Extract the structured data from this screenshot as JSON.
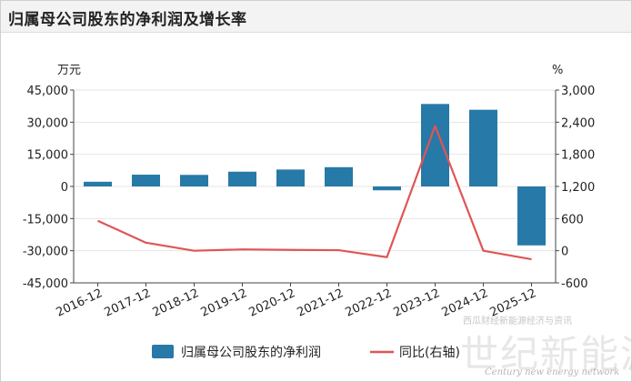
{
  "title": "归属母公司股东的净利润及增长率",
  "watermark": {
    "small": "西瓜财经新能源经济与资讯",
    "cn": "世纪新能源网",
    "en": "Century new energy network"
  },
  "chart_data": {
    "type": "bar",
    "categories": [
      "2016-12",
      "2017-12",
      "2018-12",
      "2019-12",
      "2020-12",
      "2021-12",
      "2022-12",
      "2023-12",
      "2024-12",
      "2025-12"
    ],
    "series": [
      {
        "name": "归属母公司股东的净利润",
        "type": "bar",
        "axis": "left",
        "color": "#2779a7",
        "values": [
          2200,
          5500,
          5400,
          6900,
          7900,
          9000,
          -1800,
          38500,
          35800,
          -27500
        ]
      },
      {
        "name": "同比(右轴)",
        "type": "line",
        "axis": "right",
        "color": "#e05555",
        "values": [
          560,
          150,
          0,
          25,
          15,
          10,
          -120,
          2330,
          0,
          -160
        ]
      }
    ],
    "left_unit": "万元",
    "right_unit": "%",
    "left_ticks": [
      "45,000",
      "30,000",
      "15,000",
      "0",
      "-15,000",
      "-30,000",
      "-45,000"
    ],
    "right_ticks": [
      "3,000",
      "2,400",
      "1,800",
      "1,200",
      "600",
      "0",
      "-600"
    ],
    "ylim_left": [
      -45000,
      45000
    ],
    "ylim_right": [
      -600,
      3000
    ],
    "grid": true,
    "legend_position": "bottom"
  }
}
